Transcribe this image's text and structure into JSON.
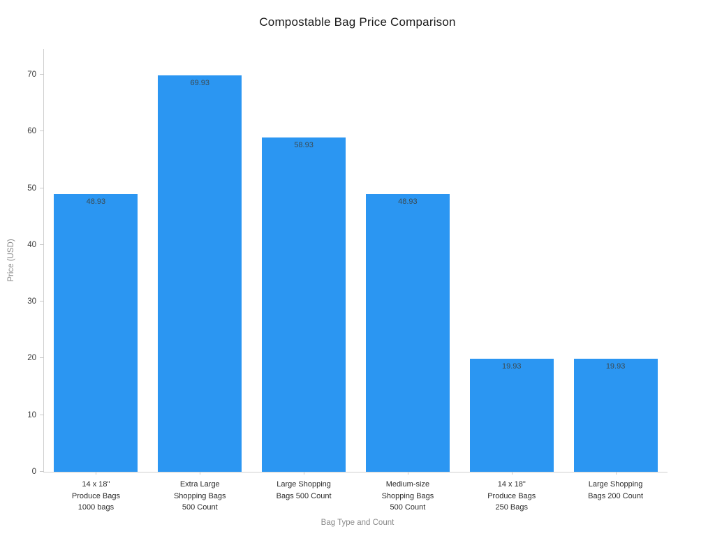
{
  "page": {
    "background": "#ffffff"
  },
  "chart_data": {
    "type": "bar",
    "title": "Compostable Bag Price Comparison",
    "xlabel": "Bag Type and Count",
    "ylabel": "Price (USD)",
    "ylim": [
      0,
      74.5
    ],
    "yticks": [
      0,
      10,
      20,
      30,
      40,
      50,
      60,
      70
    ],
    "categories": [
      "14 x 18\"\nProduce Bags\n1000 bags",
      "Extra Large\nShopping Bags\n500 Count",
      "Large Shopping\nBags 500 Count",
      "Medium-size\nShopping Bags\n500 Count",
      "14 x 18\"\nProduce Bags\n250 Bags",
      "Large Shopping\nBags 200 Count"
    ],
    "values": [
      48.93,
      69.93,
      58.93,
      48.93,
      19.93,
      19.93
    ],
    "value_labels": [
      "48.93",
      "69.93",
      "58.93",
      "48.93",
      "19.93",
      "19.93"
    ],
    "bar_color": "#2b96f2",
    "value_label_color": "#3a4a52",
    "axis_color": "#cfcfcf",
    "grid": false,
    "legend": false
  }
}
